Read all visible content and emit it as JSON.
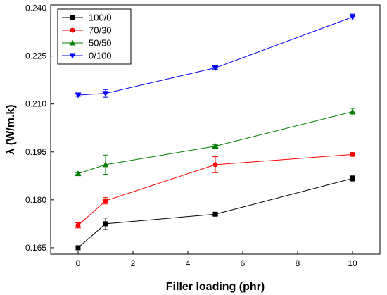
{
  "chart_data": {
    "type": "line",
    "xlabel": "Filler loading (phr)",
    "ylabel": "λ (W/m.k)",
    "xlim": [
      -1,
      11
    ],
    "ylim": [
      0.163,
      0.241
    ],
    "x_ticks": [
      0,
      2,
      4,
      6,
      8,
      10
    ],
    "y_ticks": [
      0.165,
      0.18,
      0.195,
      0.21,
      0.225,
      0.24
    ],
    "legend_position": "top-left",
    "x": [
      0,
      1,
      5,
      10
    ],
    "series": [
      {
        "name": "100/0",
        "color": "#000000",
        "marker": "square",
        "values": [
          0.165,
          0.1725,
          0.1755,
          0.1867
        ],
        "errors": [
          0.0002,
          0.0018,
          0.0004,
          0.0008
        ]
      },
      {
        "name": "70/30",
        "color": "#ff0000",
        "marker": "circle",
        "values": [
          0.172,
          0.1797,
          0.191,
          0.1942
        ],
        "errors": [
          0.0008,
          0.001,
          0.0025,
          0.0006
        ]
      },
      {
        "name": "50/50",
        "color": "#008000",
        "marker": "triangle-up",
        "values": [
          0.1882,
          0.191,
          0.1968,
          0.2076
        ],
        "errors": [
          0.0003,
          0.003,
          0.0004,
          0.001
        ]
      },
      {
        "name": "0/100",
        "color": "#0000ff",
        "marker": "triangle-down",
        "values": [
          0.2128,
          0.2133,
          0.2213,
          0.2372
        ],
        "errors": [
          0.0004,
          0.0012,
          0.0004,
          0.0009
        ]
      }
    ]
  }
}
